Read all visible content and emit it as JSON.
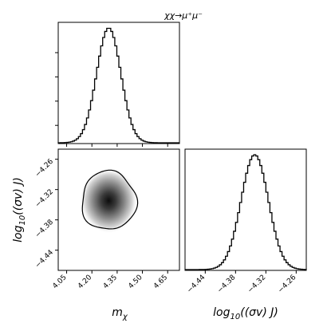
{
  "title": "χχ→μ⁺μ⁻",
  "chart_data": {
    "type": "corner",
    "title": "χχ→μ⁺μ⁻",
    "parameters": [
      {
        "key": "m",
        "label": "m_χ",
        "label_main": "m",
        "label_sub": "χ",
        "range": [
          4.0,
          4.72
        ],
        "ticks": [
          4.05,
          4.2,
          4.35,
          4.5,
          4.65
        ],
        "tick_labels": [
          "4.05",
          "4.20",
          "4.35",
          "4.50",
          "4.65"
        ],
        "posterior_mean": 4.3,
        "posterior_sigma": 0.072
      },
      {
        "key": "sv",
        "label": "log10((σv) J)",
        "label_main": "log",
        "label_sub": "10",
        "label_rest": "((σv)   J)",
        "range": [
          -4.48,
          -4.24
        ],
        "ticks": [
          -4.26,
          -4.32,
          -4.38,
          -4.44
        ],
        "tick_labels": [
          "−4.26",
          "−4.32",
          "−4.38",
          "−4.44"
        ],
        "posterior_mean": -4.342,
        "posterior_sigma": 0.027
      }
    ],
    "panels": [
      {
        "name": "marginal-m",
        "type": "histogram",
        "parameter": "m"
      },
      {
        "name": "joint-m-sv",
        "type": "2d-density",
        "x": "m",
        "y": "sv",
        "contour": "1σ region"
      },
      {
        "name": "marginal-sv",
        "type": "histogram",
        "parameter": "sv"
      }
    ]
  }
}
